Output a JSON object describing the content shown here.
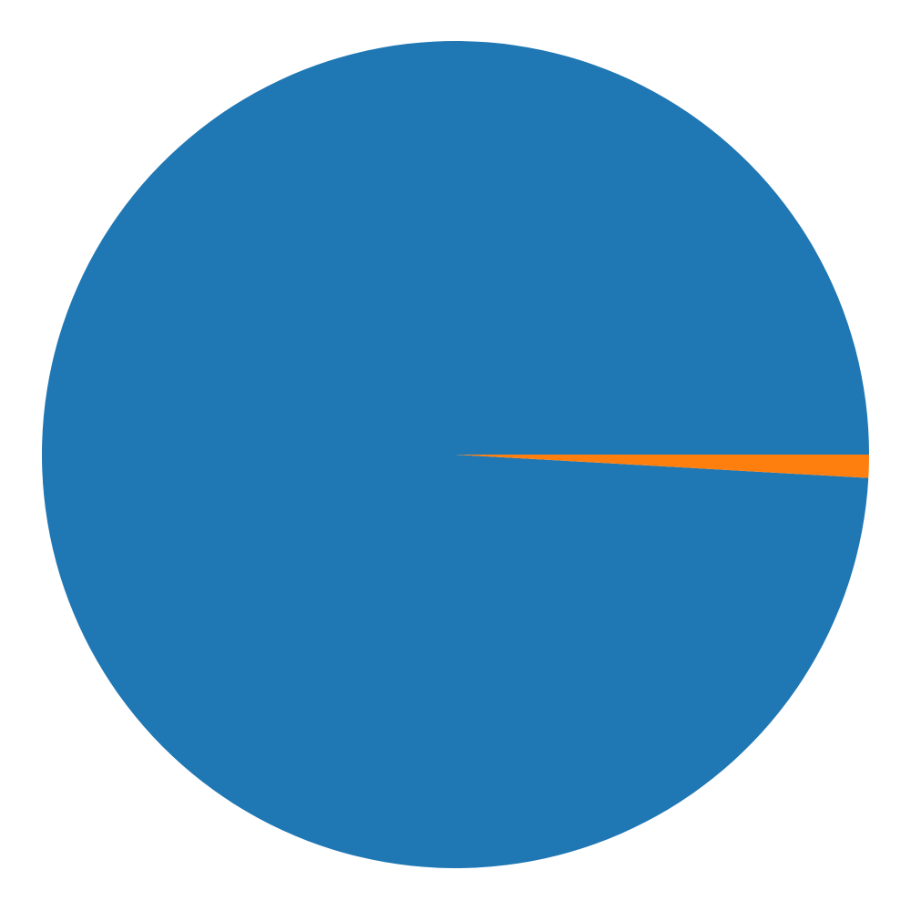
{
  "chart_data": {
    "type": "pie",
    "title": "",
    "slices": [
      {
        "value": 99.1,
        "color": "#1f77b4"
      },
      {
        "value": 0.9,
        "color": "#ff7f0e"
      }
    ],
    "start_angle_deg": 0,
    "direction": "counterclockwise",
    "legend": "none"
  }
}
